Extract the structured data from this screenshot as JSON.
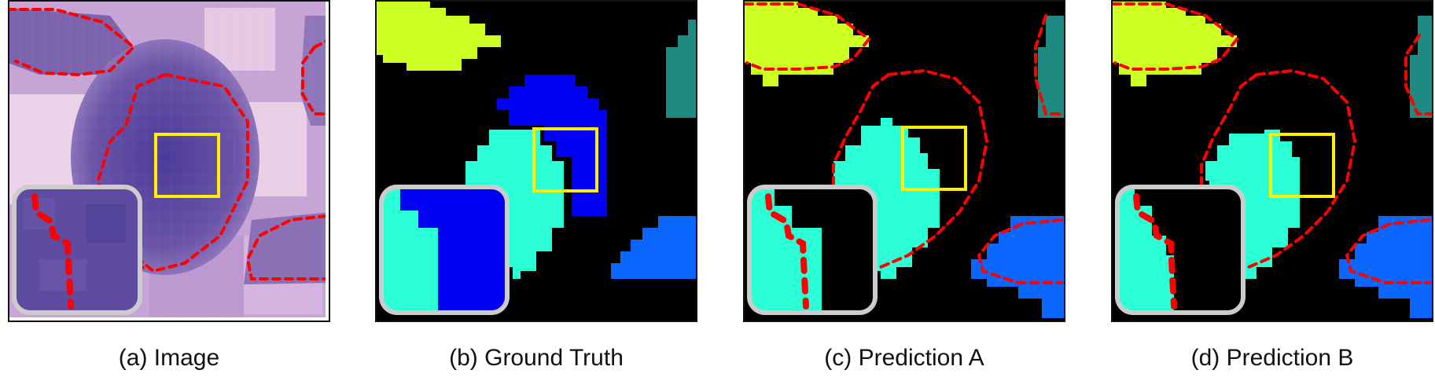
{
  "colors": {
    "background": "#000000",
    "cell_yellow": "#CCFF22",
    "cell_teal": "#1E8A82",
    "cell_blue": "#0000F5",
    "cell_cyan": "#2AFFD5",
    "cell_lightblue": "#0A66FF",
    "boundary_dashes": "#FF0000",
    "zoom_box": "#FFF000",
    "inset_border": "#CCCCCC"
  },
  "panels": [
    {
      "id": "a",
      "caption": "(a) Image",
      "content": "histology-image"
    },
    {
      "id": "b",
      "caption": "(b) Ground Truth",
      "content": "segmentation-mask"
    },
    {
      "id": "c",
      "caption": "(c) Prediction A",
      "content": "segmentation-prediction"
    },
    {
      "id": "d",
      "caption": "(d) Prediction B",
      "content": "segmentation-prediction"
    }
  ]
}
